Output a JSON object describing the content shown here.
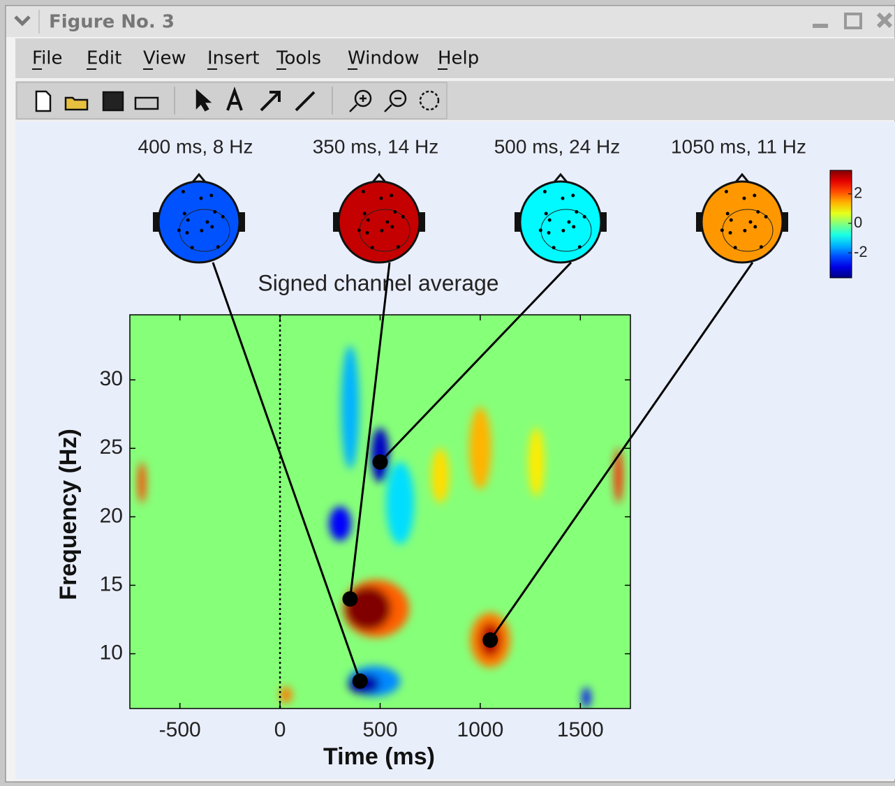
{
  "window": {
    "title": "Figure No. 3"
  },
  "menu": [
    "File",
    "Edit",
    "View",
    "Insert",
    "Tools",
    "Window",
    "Help"
  ],
  "chart_data": {
    "type": "heatmap",
    "title": "Signed channel average",
    "xlabel": "Time (ms)",
    "ylabel": "Frequency (Hz)",
    "xlim": [
      -750,
      1750
    ],
    "xticks": [
      -500,
      0,
      500,
      1000,
      1500
    ],
    "ylim": [
      6,
      34.75
    ],
    "yticks": [
      10,
      15,
      20,
      25,
      30
    ],
    "onset": 0,
    "colormap": "jet",
    "clim": [
      -3.7,
      3.6
    ],
    "cticks": [
      2,
      0,
      -2
    ],
    "background_value": 0,
    "clusters": [
      {
        "time": 350,
        "freq": 28,
        "time_width": 90,
        "freq_width": 9,
        "value": -1.5
      },
      {
        "time": 600,
        "freq": 21,
        "time_width": 140,
        "freq_width": 6,
        "value": -1.2
      },
      {
        "time": 300,
        "freq": 19.5,
        "time_width": 110,
        "freq_width": 2.5,
        "value": -2.8
      },
      {
        "time": 500,
        "freq": 24.5,
        "time_width": 90,
        "freq_width": 4,
        "value": -3.2
      },
      {
        "time": 1000,
        "freq": 25,
        "time_width": 110,
        "freq_width": 6,
        "value": 1.4
      },
      {
        "time": 800,
        "freq": 23,
        "time_width": 90,
        "freq_width": 4,
        "value": 1.1
      },
      {
        "time": 1280,
        "freq": 24,
        "time_width": 80,
        "freq_width": 5,
        "value": 1.0
      },
      {
        "time": -690,
        "freq": 22.5,
        "time_width": 40,
        "freq_width": 3,
        "value": 2.2
      },
      {
        "time": 1690,
        "freq": 23,
        "time_width": 40,
        "freq_width": 4,
        "value": 2.5
      },
      {
        "time": 480,
        "freq": 13.3,
        "time_width": 330,
        "freq_width": 4.2,
        "value": 2.0
      },
      {
        "time": 440,
        "freq": 13.3,
        "time_width": 230,
        "freq_width": 3.2,
        "value": 3.6
      },
      {
        "time": 470,
        "freq": 8,
        "time_width": 260,
        "freq_width": 2.2,
        "value": -1.8
      },
      {
        "time": 420,
        "freq": 7.8,
        "time_width": 160,
        "freq_width": 1.5,
        "value": -3.4
      },
      {
        "time": 1050,
        "freq": 11,
        "time_width": 200,
        "freq_width": 4,
        "value": 1.8
      },
      {
        "time": 1050,
        "freq": 11,
        "time_width": 110,
        "freq_width": 2.5,
        "value": 3.2
      },
      {
        "time": 30,
        "freq": 7,
        "time_width": 60,
        "freq_width": 1.2,
        "value": 1.8
      },
      {
        "time": 1530,
        "freq": 6.8,
        "time_width": 40,
        "freq_width": 1.5,
        "value": -2.8
      }
    ],
    "topoplots": [
      {
        "title": "400 ms, 8 Hz",
        "time": 400,
        "freq": 8,
        "value": -2.2
      },
      {
        "title": "350 ms, 14 Hz",
        "time": 350,
        "freq": 14,
        "value": 3.1
      },
      {
        "title": "500 ms, 24 Hz",
        "time": 500,
        "freq": 24,
        "value": -1.0
      },
      {
        "title": "1050 ms, 11 Hz",
        "time": 1050,
        "freq": 11,
        "value": 1.6
      }
    ]
  }
}
